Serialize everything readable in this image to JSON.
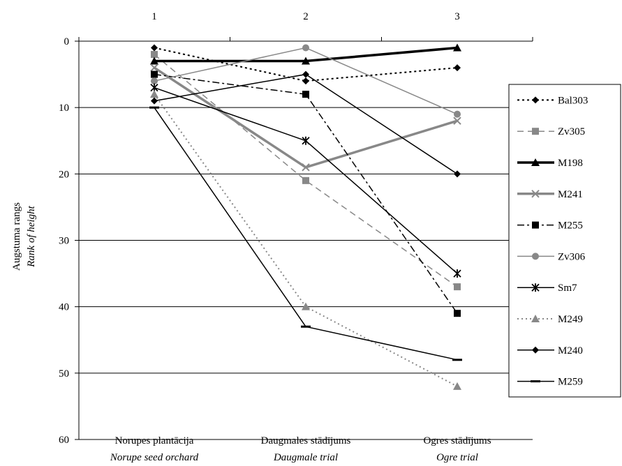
{
  "chart_data": {
    "type": "line",
    "top_axis_labels": [
      "1",
      "2",
      "3"
    ],
    "categories": [
      {
        "main": "Norupes plantācija",
        "italic": "Norupe seed orchard"
      },
      {
        "main": "Daugmales stādījums",
        "italic": "Daugmale trial"
      },
      {
        "main": "Ogres stādījums",
        "italic": "Ogre trial"
      }
    ],
    "ylabel": "Augstuma rangs",
    "ylabel_italic": "Rank of height",
    "ylim": [
      0,
      60
    ],
    "y_reversed": true,
    "y_ticks": [
      "0",
      "10",
      "20",
      "30",
      "40",
      "50",
      "60"
    ],
    "grid": true,
    "legend_position": "right",
    "series": [
      {
        "name": "Bal303",
        "values": [
          1,
          6,
          4
        ],
        "color": "#000000",
        "dash": "3,4",
        "width": 2,
        "marker": "diamond",
        "marker_color": "#000000"
      },
      {
        "name": "Zv305",
        "values": [
          2,
          21,
          37
        ],
        "color": "#888888",
        "dash": "9,6",
        "width": 1.5,
        "marker": "square",
        "marker_color": "#888888"
      },
      {
        "name": "M198",
        "values": [
          3,
          3,
          1
        ],
        "color": "#000000",
        "dash": "",
        "width": 3.5,
        "marker": "triangle",
        "marker_color": "#000000"
      },
      {
        "name": "M241",
        "values": [
          4,
          19,
          12
        ],
        "color": "#888888",
        "dash": "",
        "width": 3.5,
        "marker": "x",
        "marker_color": "#888888"
      },
      {
        "name": "M255",
        "values": [
          5,
          8,
          41
        ],
        "color": "#000000",
        "dash": "10,4,3,4",
        "width": 1.5,
        "marker": "square",
        "marker_color": "#000000"
      },
      {
        "name": "Zv306",
        "values": [
          6,
          1,
          11
        ],
        "color": "#888888",
        "dash": "",
        "width": 1.5,
        "marker": "circle",
        "marker_color": "#888888"
      },
      {
        "name": "Sm7",
        "values": [
          7,
          15,
          35
        ],
        "color": "#000000",
        "dash": "",
        "width": 1.5,
        "marker": "star",
        "marker_color": "#000000"
      },
      {
        "name": "M249",
        "values": [
          8,
          40,
          52
        ],
        "color": "#888888",
        "dash": "2,4",
        "width": 2,
        "marker": "triangle",
        "marker_color": "#888888"
      },
      {
        "name": "M240",
        "values": [
          9,
          5,
          20
        ],
        "color": "#000000",
        "dash": "",
        "width": 1.5,
        "marker": "diamond",
        "marker_color": "#000000"
      },
      {
        "name": "M259",
        "values": [
          10,
          43,
          48
        ],
        "color": "#000000",
        "dash": "",
        "width": 1.5,
        "marker": "dash",
        "marker_color": "#000000"
      }
    ]
  }
}
